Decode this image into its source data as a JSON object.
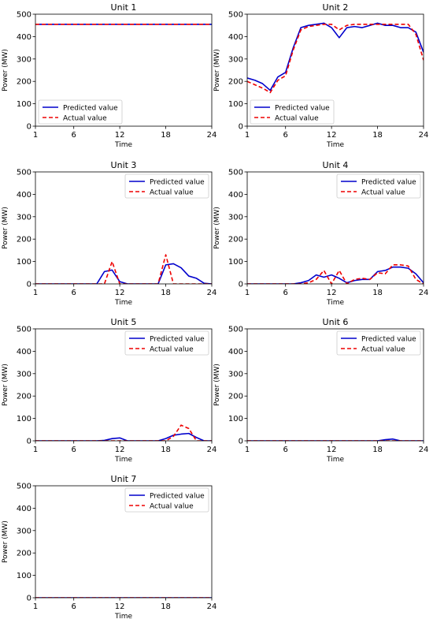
{
  "colors": {
    "predicted": "#0000cc",
    "actual": "#ee0000",
    "axis": "#000000"
  },
  "chart_data": [
    {
      "type": "line",
      "title": "Unit 1",
      "xlabel": "Time",
      "ylabel": "Power (MW)",
      "xlim": [
        1,
        24
      ],
      "ylim": [
        0,
        500
      ],
      "xticks": [
        1,
        6,
        12,
        18,
        24
      ],
      "yticks": [
        0,
        100,
        200,
        300,
        400,
        500
      ],
      "x": [
        1,
        2,
        3,
        4,
        5,
        6,
        7,
        8,
        9,
        10,
        11,
        12,
        13,
        14,
        15,
        16,
        17,
        18,
        19,
        20,
        21,
        22,
        23,
        24
      ],
      "legend": "lower-left",
      "series": [
        {
          "name": "Predicted value",
          "style": "solid",
          "values": [
            455,
            455,
            455,
            455,
            455,
            455,
            455,
            455,
            455,
            455,
            455,
            455,
            455,
            455,
            455,
            455,
            455,
            455,
            455,
            455,
            455,
            455,
            455,
            455
          ]
        },
        {
          "name": "Actual value",
          "style": "dashed",
          "values": [
            455,
            455,
            455,
            455,
            455,
            455,
            455,
            455,
            455,
            455,
            455,
            455,
            455,
            455,
            455,
            455,
            455,
            455,
            455,
            455,
            455,
            455,
            455,
            455
          ]
        }
      ]
    },
    {
      "type": "line",
      "title": "Unit 2",
      "xlabel": "Time",
      "ylabel": "Power (MW)",
      "xlim": [
        1,
        24
      ],
      "ylim": [
        0,
        500
      ],
      "xticks": [
        1,
        6,
        12,
        18,
        24
      ],
      "yticks": [
        0,
        100,
        200,
        300,
        400,
        500
      ],
      "x": [
        1,
        2,
        3,
        4,
        5,
        6,
        7,
        8,
        9,
        10,
        11,
        12,
        13,
        14,
        15,
        16,
        17,
        18,
        19,
        20,
        21,
        22,
        23,
        24
      ],
      "legend": "lower-left",
      "series": [
        {
          "name": "Predicted value",
          "style": "solid",
          "values": [
            215,
            205,
            190,
            160,
            220,
            240,
            350,
            440,
            450,
            455,
            460,
            440,
            395,
            440,
            445,
            440,
            450,
            460,
            450,
            450,
            440,
            440,
            420,
            330
          ]
        },
        {
          "name": "Actual value",
          "style": "dashed",
          "values": [
            200,
            185,
            170,
            150,
            205,
            225,
            340,
            430,
            445,
            450,
            455,
            455,
            430,
            450,
            455,
            455,
            455,
            455,
            455,
            455,
            455,
            455,
            410,
            295
          ]
        }
      ]
    },
    {
      "type": "line",
      "title": "Unit 3",
      "xlabel": "Time",
      "ylabel": "Power (MW)",
      "xlim": [
        1,
        24
      ],
      "ylim": [
        0,
        500
      ],
      "xticks": [
        1,
        6,
        12,
        18,
        24
      ],
      "yticks": [
        0,
        100,
        200,
        300,
        400,
        500
      ],
      "x": [
        1,
        2,
        3,
        4,
        5,
        6,
        7,
        8,
        9,
        10,
        11,
        12,
        13,
        14,
        15,
        16,
        17,
        18,
        19,
        20,
        21,
        22,
        23,
        24
      ],
      "legend": "upper-right",
      "series": [
        {
          "name": "Predicted value",
          "style": "solid",
          "values": [
            0,
            0,
            0,
            0,
            0,
            0,
            0,
            0,
            0,
            55,
            62,
            10,
            0,
            0,
            0,
            0,
            0,
            85,
            90,
            72,
            35,
            25,
            3,
            0
          ]
        },
        {
          "name": "Actual value",
          "style": "dashed",
          "values": [
            0,
            0,
            0,
            0,
            0,
            0,
            0,
            0,
            0,
            0,
            100,
            0,
            0,
            0,
            0,
            0,
            0,
            130,
            0,
            0,
            0,
            0,
            0,
            0
          ]
        }
      ]
    },
    {
      "type": "line",
      "title": "Unit 4",
      "xlabel": "Time",
      "ylabel": "Power (MW)",
      "xlim": [
        1,
        24
      ],
      "ylim": [
        0,
        500
      ],
      "xticks": [
        1,
        6,
        12,
        18,
        24
      ],
      "yticks": [
        0,
        100,
        200,
        300,
        400,
        500
      ],
      "x": [
        1,
        2,
        3,
        4,
        5,
        6,
        7,
        8,
        9,
        10,
        11,
        12,
        13,
        14,
        15,
        16,
        17,
        18,
        19,
        20,
        21,
        22,
        23,
        24
      ],
      "legend": "upper-right",
      "series": [
        {
          "name": "Predicted value",
          "style": "solid",
          "values": [
            0,
            0,
            0,
            0,
            0,
            0,
            0,
            5,
            15,
            40,
            30,
            40,
            25,
            5,
            15,
            20,
            20,
            55,
            60,
            75,
            75,
            70,
            45,
            5
          ]
        },
        {
          "name": "Actual value",
          "style": "dashed",
          "values": [
            0,
            0,
            0,
            0,
            0,
            0,
            0,
            0,
            5,
            20,
            60,
            0,
            60,
            0,
            20,
            25,
            20,
            50,
            45,
            85,
            85,
            80,
            20,
            0
          ]
        }
      ]
    },
    {
      "type": "line",
      "title": "Unit 5",
      "xlabel": "Time",
      "ylabel": "Power (MW)",
      "xlim": [
        1,
        24
      ],
      "ylim": [
        0,
        500
      ],
      "xticks": [
        1,
        6,
        12,
        18,
        24
      ],
      "yticks": [
        0,
        100,
        200,
        300,
        400,
        500
      ],
      "x": [
        1,
        2,
        3,
        4,
        5,
        6,
        7,
        8,
        9,
        10,
        11,
        12,
        13,
        14,
        15,
        16,
        17,
        18,
        19,
        20,
        21,
        22,
        23,
        24
      ],
      "legend": "upper-right",
      "series": [
        {
          "name": "Predicted value",
          "style": "solid",
          "values": [
            0,
            0,
            0,
            0,
            0,
            0,
            0,
            0,
            0,
            2,
            10,
            13,
            0,
            0,
            0,
            0,
            0,
            10,
            25,
            30,
            33,
            15,
            0,
            0
          ]
        },
        {
          "name": "Actual value",
          "style": "dashed",
          "values": [
            0,
            0,
            0,
            0,
            0,
            0,
            0,
            0,
            0,
            0,
            0,
            0,
            0,
            0,
            0,
            0,
            0,
            0,
            20,
            70,
            55,
            0,
            0,
            0
          ]
        }
      ]
    },
    {
      "type": "line",
      "title": "Unit 6",
      "xlabel": "Time",
      "ylabel": "Power (MW)",
      "xlim": [
        1,
        24
      ],
      "ylim": [
        0,
        500
      ],
      "xticks": [
        1,
        6,
        12,
        18,
        24
      ],
      "yticks": [
        0,
        100,
        200,
        300,
        400,
        500
      ],
      "x": [
        1,
        2,
        3,
        4,
        5,
        6,
        7,
        8,
        9,
        10,
        11,
        12,
        13,
        14,
        15,
        16,
        17,
        18,
        19,
        20,
        21,
        22,
        23,
        24
      ],
      "legend": "upper-right",
      "series": [
        {
          "name": "Predicted value",
          "style": "solid",
          "values": [
            0,
            0,
            0,
            0,
            0,
            0,
            0,
            0,
            0,
            0,
            0,
            0,
            0,
            0,
            0,
            0,
            0,
            0,
            5,
            8,
            0,
            0,
            0,
            0
          ]
        },
        {
          "name": "Actual value",
          "style": "dashed",
          "values": [
            0,
            0,
            0,
            0,
            0,
            0,
            0,
            0,
            0,
            0,
            0,
            0,
            0,
            0,
            0,
            0,
            0,
            0,
            0,
            0,
            0,
            0,
            0,
            0
          ]
        }
      ]
    },
    {
      "type": "line",
      "title": "Unit 7",
      "xlabel": "Time",
      "ylabel": "Power (MW)",
      "xlim": [
        1,
        24
      ],
      "ylim": [
        0,
        500
      ],
      "xticks": [
        1,
        6,
        12,
        18,
        24
      ],
      "yticks": [
        0,
        100,
        200,
        300,
        400,
        500
      ],
      "x": [
        1,
        2,
        3,
        4,
        5,
        6,
        7,
        8,
        9,
        10,
        11,
        12,
        13,
        14,
        15,
        16,
        17,
        18,
        19,
        20,
        21,
        22,
        23,
        24
      ],
      "legend": "upper-right",
      "series": [
        {
          "name": "Predicted value",
          "style": "solid",
          "values": [
            0,
            0,
            0,
            0,
            0,
            0,
            0,
            0,
            0,
            0,
            0,
            0,
            0,
            0,
            0,
            0,
            0,
            0,
            0,
            0,
            0,
            0,
            0,
            0
          ]
        },
        {
          "name": "Actual value",
          "style": "dashed",
          "values": [
            0,
            0,
            0,
            0,
            0,
            0,
            0,
            0,
            0,
            0,
            0,
            0,
            0,
            0,
            0,
            0,
            0,
            0,
            0,
            0,
            0,
            0,
            0,
            0
          ]
        }
      ]
    }
  ]
}
